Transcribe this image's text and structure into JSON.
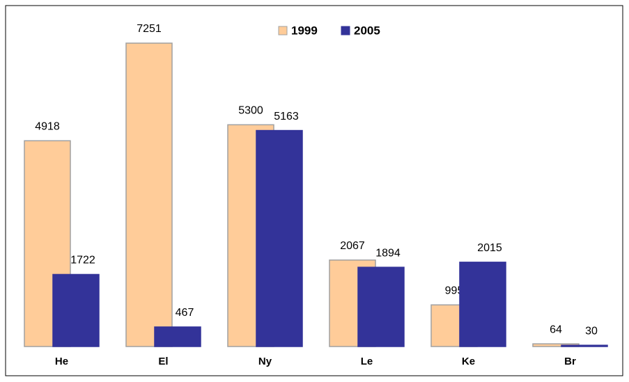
{
  "chart_data": {
    "type": "bar",
    "categories": [
      "He",
      "El",
      "Ny",
      "Le",
      "Ke",
      "Br"
    ],
    "series": [
      {
        "name": "1999",
        "color": "#ffcc99",
        "values": [
          4918,
          7251,
          5300,
          2067,
          995,
          64
        ]
      },
      {
        "name": "2005",
        "color": "#333399",
        "values": [
          1722,
          467,
          5163,
          1894,
          2015,
          30
        ]
      }
    ],
    "legend": "top"
  }
}
